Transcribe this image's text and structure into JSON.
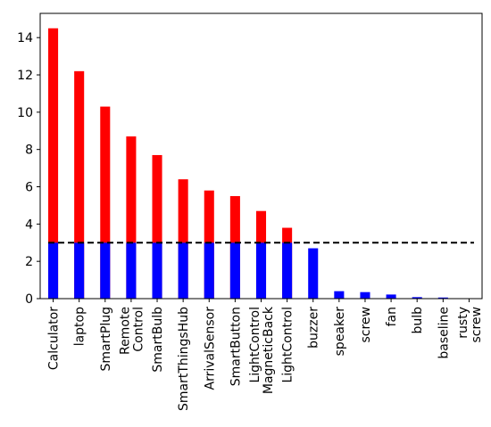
{
  "chart_data": {
    "type": "bar",
    "categories": [
      "Calculator",
      "laptop",
      "SmartPlug",
      "Remote\nControl",
      "SmartBulb",
      "SmartThingsHub",
      "ArrivalSensor",
      "SmartButton",
      "LightControl\nMagneticBack",
      "LightControl",
      "buzzer",
      "speaker",
      "screw",
      "fan",
      "bulb",
      "baseline",
      "rusty\nscrew"
    ],
    "series": [
      {
        "values": [
          14.5,
          12.2,
          10.3,
          8.7,
          7.7,
          6.4,
          5.8,
          5.5,
          4.7,
          3.8,
          0,
          0,
          0,
          0,
          0,
          0,
          0
        ],
        "color": "#ff0000"
      },
      {
        "values": [
          3.0,
          3.0,
          3.0,
          3.0,
          3.0,
          3.0,
          3.0,
          3.0,
          3.0,
          3.0,
          2.7,
          0.4,
          0.35,
          0.22,
          0.08,
          0.06,
          0.02
        ],
        "color": "#0000ff"
      }
    ],
    "threshold": {
      "value": 3.0,
      "style": "dashed",
      "color": "#000000"
    },
    "ylim": [
      0,
      15.3
    ],
    "yticks": [
      "0",
      "2",
      "4",
      "6",
      "8",
      "10",
      "12",
      "14"
    ],
    "grid": false,
    "title": "",
    "xlabel": "",
    "ylabel": ""
  }
}
